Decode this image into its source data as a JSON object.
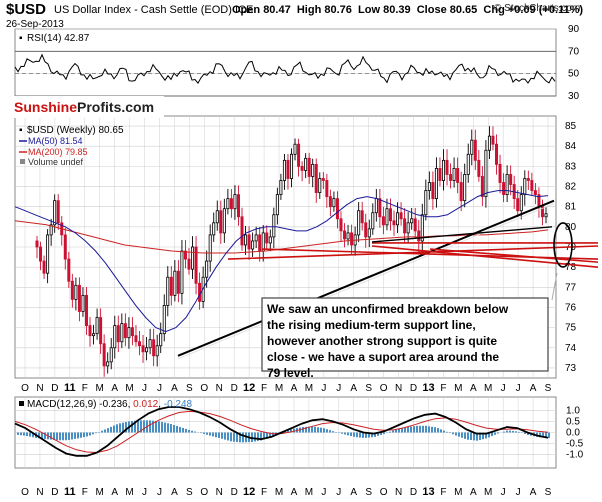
{
  "header": {
    "ticker": "$USD",
    "description": "US Dollar Index - Cash Settle (EOD) ICE",
    "open_label": "Open",
    "open": "80.47",
    "high_label": "High",
    "high": "80.76",
    "low_label": "Low",
    "low": "80.39",
    "close_label": "Close",
    "close": "80.65",
    "chg_label": "Chg",
    "chg": "+0.09 (+0.11%)",
    "date": "26-Sep-2013",
    "copyright": "© StockCharts.com"
  },
  "watermark": {
    "part1": "Sunshine",
    "part2": "Profits.com"
  },
  "colors": {
    "up": "#000000",
    "down": "#cc1133",
    "ma50": "#1a1a99",
    "ma200": "#cc2222",
    "rsi": "#000000",
    "macd": "#000000",
    "signal": "#cc2222",
    "hist": "#4a8fc4",
    "grid": "#cfcfcf",
    "trend_red": "#cc1111",
    "annotation_border": "#444444"
  },
  "chart_data": [
    {
      "type": "line",
      "name": "RSI",
      "legend": "RSI(14) 42.87",
      "ylim": [
        30,
        90
      ],
      "yticks": [
        90,
        70,
        50,
        30
      ],
      "levels": [
        70,
        30
      ],
      "dash_level": 50,
      "points": [
        [
          0,
          54
        ],
        [
          4,
          60
        ],
        [
          8,
          64
        ],
        [
          12,
          52
        ],
        [
          15,
          46
        ],
        [
          18,
          58
        ],
        [
          21,
          50
        ],
        [
          24,
          44
        ],
        [
          27,
          52
        ],
        [
          30,
          47
        ],
        [
          33,
          55
        ],
        [
          36,
          44
        ],
        [
          39,
          48
        ],
        [
          42,
          56
        ],
        [
          45,
          50
        ],
        [
          48,
          44
        ],
        [
          51,
          54
        ],
        [
          54,
          48
        ],
        [
          57,
          43
        ],
        [
          60,
          52
        ],
        [
          63,
          58
        ],
        [
          66,
          50
        ],
        [
          69,
          46
        ],
        [
          72,
          60
        ],
        [
          75,
          52
        ],
        [
          78,
          47
        ],
        [
          81,
          55
        ],
        [
          84,
          49
        ],
        [
          87,
          58
        ],
        [
          90,
          52
        ],
        [
          93,
          46
        ],
        [
          96,
          54
        ],
        [
          99,
          50
        ],
        [
          102,
          60
        ],
        [
          105,
          56
        ],
        [
          108,
          62
        ],
        [
          111,
          53
        ],
        [
          114,
          45
        ],
        [
          117,
          51
        ],
        [
          120,
          48
        ],
        [
          123,
          56
        ],
        [
          126,
          49
        ],
        [
          129,
          53
        ],
        [
          132,
          47
        ],
        [
          135,
          50
        ],
        [
          138,
          58
        ],
        [
          141,
          52
        ],
        [
          144,
          47
        ],
        [
          147,
          55
        ],
        [
          150,
          50
        ],
        [
          153,
          48
        ],
        [
          156,
          42
        ],
        [
          159,
          46
        ],
        [
          162,
          49
        ],
        [
          165,
          43
        ]
      ]
    },
    {
      "type": "candlestick",
      "name": "USD weekly",
      "legend": [
        "$USD (Weekly) 80.65",
        "MA(50) 81.54",
        "MA(200) 79.85",
        "Volume undef"
      ],
      "ylim": [
        72.5,
        85.5
      ],
      "yticks": [
        85,
        84,
        83,
        82,
        81,
        80,
        79,
        78,
        77,
        76,
        75,
        74,
        73
      ],
      "x_labels": [
        "O",
        "N",
        "D",
        "11",
        "F",
        "M",
        "A",
        "M",
        "J",
        "J",
        "A",
        "S",
        "O",
        "N",
        "D",
        "12",
        "F",
        "M",
        "A",
        "M",
        "J",
        "J",
        "A",
        "S",
        "O",
        "N",
        "D",
        "13",
        "F",
        "M",
        "A",
        "M",
        "J",
        "J",
        "A",
        "S"
      ],
      "closes": [
        79.0,
        78.3,
        77.7,
        79.6,
        80.1,
        81.3,
        80.2,
        79.6,
        78.4,
        77.3,
        76.4,
        77.1,
        75.8,
        76.6,
        75.1,
        74.6,
        74.7,
        75.5,
        74.2,
        73.1,
        73.3,
        74.0,
        75.1,
        74.3,
        75.2,
        74.5,
        75.0,
        74.6,
        74.3,
        74.1,
        73.8,
        74.0,
        74.4,
        73.6,
        74.1,
        74.7,
        76.1,
        77.5,
        76.6,
        77.8,
        76.7,
        78.8,
        78.4,
        77.9,
        79.0,
        77.2,
        76.3,
        77.5,
        78.3,
        79.6,
        80.2,
        80.8,
        79.7,
        80.9,
        81.4,
        80.9,
        81.6,
        80.5,
        79.1,
        79.6,
        78.9,
        79.3,
        79.6,
        78.8,
        79.7,
        79.2,
        79.5,
        80.6,
        81.6,
        82.3,
        83.3,
        82.4,
        83.6,
        84.1,
        83.0,
        82.8,
        83.4,
        82.5,
        83.1,
        81.7,
        82.4,
        82.3,
        81.5,
        81.0,
        81.4,
        80.4,
        79.8,
        79.4,
        79.7,
        79.1,
        79.6,
        80.8,
        80.2,
        79.5,
        79.9,
        80.7,
        81.4,
        80.5,
        80.1,
        80.9,
        80.3,
        80.1,
        80.7,
        80.4,
        79.7,
        80.2,
        80.4,
        79.8,
        79.3,
        80.6,
        81.8,
        82.2,
        81.4,
        82.9,
        82.3,
        83.3,
        82.6,
        82.3,
        82.9,
        82.2,
        81.3,
        82.6,
        83.6,
        84.3,
        83.3,
        82.5,
        81.5,
        83.8,
        84.5,
        84.1,
        83.1,
        82.2,
        81.6,
        82.6,
        82.1,
        81.4,
        80.8,
        81.6,
        82.4,
        82.3,
        81.8,
        81.6,
        81.0,
        80.5,
        80.65
      ],
      "ma50": [
        81.0,
        80.8,
        80.6,
        80.4,
        80.2,
        80.0,
        79.7,
        79.3,
        78.8,
        78.2,
        77.5,
        76.8,
        76.1,
        75.5,
        75.0,
        74.8,
        75.0,
        75.5,
        76.3,
        77.2,
        78.0,
        78.7,
        79.3,
        79.7,
        79.9,
        80.0,
        80.0,
        79.9,
        79.8,
        79.8,
        80.0,
        80.3,
        80.7,
        81.1,
        81.4,
        81.5,
        81.4,
        81.2,
        81.0,
        80.8,
        80.6,
        80.5,
        80.5,
        80.6,
        80.9,
        81.2,
        81.5,
        81.7,
        81.8,
        81.8,
        81.7,
        81.6,
        81.5,
        81.55
      ],
      "ma200": [
        80.3,
        80.2,
        80.1,
        79.9,
        79.7,
        79.5,
        79.3,
        79.1,
        79.0,
        78.9,
        78.8,
        78.75,
        78.7,
        78.7,
        78.7,
        78.75,
        78.8,
        78.9,
        79.0,
        79.1,
        79.2,
        79.3,
        79.35,
        79.4,
        79.45,
        79.5,
        79.5,
        79.55,
        79.55,
        79.6,
        79.6,
        79.65,
        79.7,
        79.75,
        79.85
      ],
      "annotation": "We saw an unconfirmed breakdown below the rising medium-term support line, however another strong support is quite close - we have a suport area around the 79 level."
    },
    {
      "type": "line",
      "name": "MACD",
      "legend": {
        "label": "MACD(12,26,9)",
        "v1": "-0.236",
        "v2": "0.012",
        "v3": "-0.248"
      },
      "ylim": [
        -1.6,
        1.6
      ],
      "yticks": [
        1.0,
        0.5,
        0.0,
        -0.5,
        -1.0
      ],
      "macd": [
        0.4,
        0.2,
        -0.1,
        -0.4,
        -0.7,
        -0.95,
        -1.05,
        -1.05,
        -0.9,
        -0.6,
        -0.2,
        0.2,
        0.55,
        0.85,
        1.05,
        1.15,
        1.15,
        1.05,
        0.9,
        0.7,
        0.45,
        0.15,
        -0.1,
        -0.25,
        -0.3,
        -0.2,
        0.0,
        0.2,
        0.4,
        0.55,
        0.6,
        0.5,
        0.35,
        0.15,
        0.0,
        -0.05,
        0.05,
        0.25,
        0.45,
        0.65,
        0.8,
        0.85,
        0.7,
        0.45,
        0.15,
        -0.05,
        -0.05,
        0.1,
        0.25,
        0.2,
        0.0,
        -0.15,
        -0.236
      ],
      "signal": [
        0.5,
        0.35,
        0.15,
        -0.1,
        -0.35,
        -0.6,
        -0.78,
        -0.88,
        -0.9,
        -0.8,
        -0.6,
        -0.3,
        0.0,
        0.3,
        0.55,
        0.75,
        0.9,
        0.95,
        0.92,
        0.85,
        0.72,
        0.55,
        0.35,
        0.18,
        0.05,
        -0.05,
        -0.05,
        0.03,
        0.15,
        0.28,
        0.4,
        0.45,
        0.43,
        0.35,
        0.25,
        0.15,
        0.1,
        0.12,
        0.22,
        0.35,
        0.5,
        0.62,
        0.66,
        0.6,
        0.47,
        0.32,
        0.2,
        0.15,
        0.15,
        0.16,
        0.12,
        0.06,
        0.012
      ],
      "x_labels": [
        "O",
        "N",
        "D",
        "11",
        "F",
        "M",
        "A",
        "M",
        "J",
        "J",
        "A",
        "S",
        "O",
        "N",
        "D",
        "12",
        "F",
        "M",
        "A",
        "M",
        "J",
        "J",
        "A",
        "S",
        "O",
        "N",
        "D",
        "13",
        "F",
        "M",
        "A",
        "M",
        "J",
        "J",
        "A",
        "S"
      ]
    }
  ]
}
